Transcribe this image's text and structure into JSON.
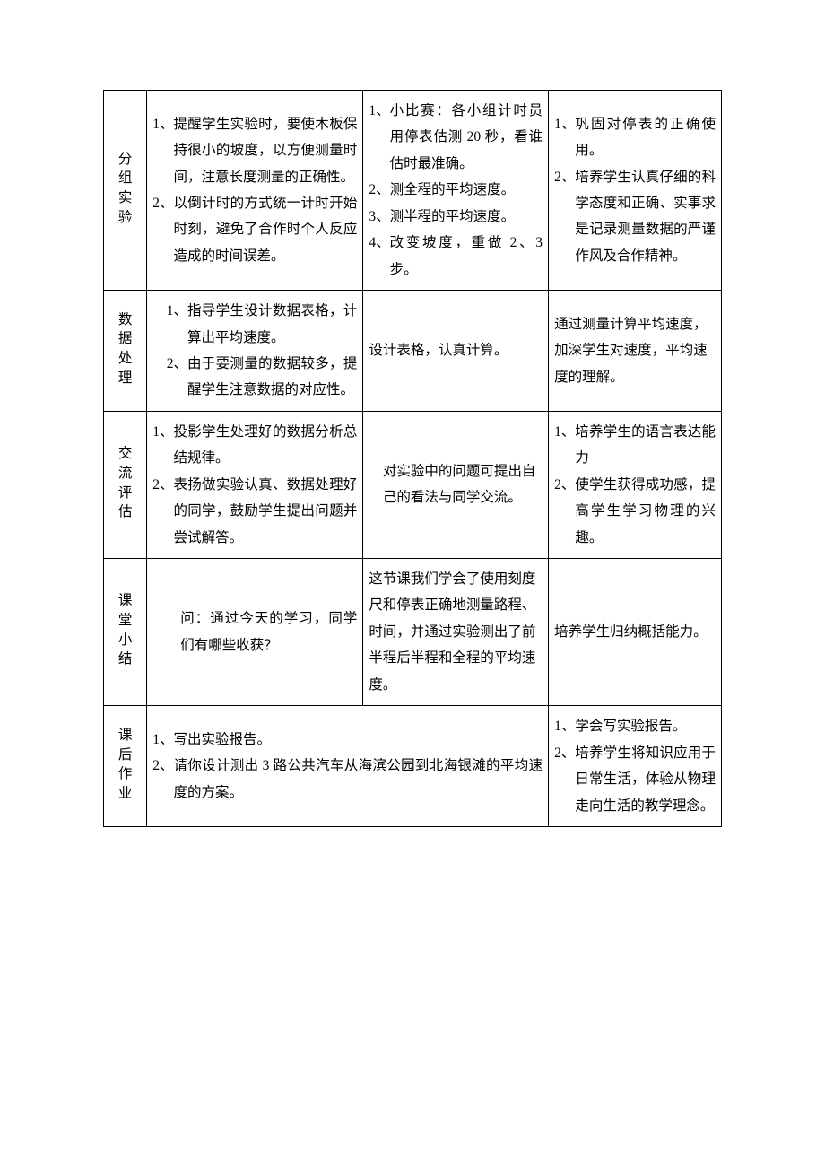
{
  "table": {
    "border_color": "#000000",
    "background_color": "#ffffff",
    "font_family": "SimSun",
    "font_size_pt": 12,
    "line_height": 1.9,
    "column_widths_pct": [
      7,
      35,
      30,
      28
    ],
    "rows": [
      {
        "label": "分组实验",
        "col2": [
          {
            "num": "1、",
            "text": "提醒学生实验时，要使木板保持很小的坡度，以方便测量时间，注意长度测量的正确性。"
          },
          {
            "num": "2、",
            "text": "以倒计时的方式统一计时开始时刻，避免了合作时个人反应造成的时间误差。"
          }
        ],
        "col3": [
          {
            "num": "1、",
            "text": "小比赛：各小组计时员用停表估测 20 秒，看谁估时最准确。"
          },
          {
            "num": "2、",
            "text": "测全程的平均速度。"
          },
          {
            "num": "3、",
            "text": "测半程的平均速度。"
          },
          {
            "num": "4、",
            "text": "改变坡度，重做 2、3 步。"
          }
        ],
        "col4": [
          {
            "num": "1、",
            "text": "巩固对停表的正确使用。"
          },
          {
            "num": "2、",
            "text": "培养学生认真仔细的科学态度和正确、实事求是记录测量数据的严谨作风及合作精神。"
          }
        ]
      },
      {
        "label": "数据处理",
        "col2": [
          {
            "num": "1、",
            "text": "指导学生设计数据表格，计算出平均速度。"
          },
          {
            "num": "2、",
            "text": "由于要测量的数据较多，提醒学生注意数据的对应性。"
          }
        ],
        "col3_plain": "设计表格，认真计算。",
        "col4_plain": "通过测量计算平均速度，加深学生对速度，平均速度的理解。"
      },
      {
        "label": "交流\n评估",
        "col2": [
          {
            "num": "1、",
            "text": "投影学生处理好的数据分析总结规律。"
          },
          {
            "num": "2、",
            "text": "表扬做实验认真、数据处理好的同学，鼓励学生提出问题并尝试解答。"
          }
        ],
        "col3_plain_indent": "对实验中的问题可提出自己的看法与同学交流。",
        "col4": [
          {
            "num": "1、",
            "text": "培养学生的语言表达能力"
          },
          {
            "num": "2、",
            "text": "使学生获得成功感，提高学生学习物理的兴趣。"
          }
        ]
      },
      {
        "label": "课堂小结",
        "col2_plain_center": "问：通过今天的学习，同学们有哪些收获？",
        "col3_plain": "这节课我们学会了使用刻度尺和停表正确地测量路程、时间，并通过实验测出了前半程后半程和全程的平均速度。",
        "col4_plain": "培养学生归纳概括能力。"
      },
      {
        "label": "课后作业",
        "col23_merged": [
          {
            "num": "1、",
            "text": "写出实验报告。"
          },
          {
            "num": "2、",
            "text": "请你设计测出 3 路公共汽车从海滨公园到北海银滩的平均速度的方案。"
          }
        ],
        "col4": [
          {
            "num": "1、",
            "text": "学会写实验报告。"
          },
          {
            "num": "2、",
            "text": "培养学生将知识应用于日常生活，体验从物理走向生活的教学理念。"
          }
        ]
      }
    ]
  }
}
